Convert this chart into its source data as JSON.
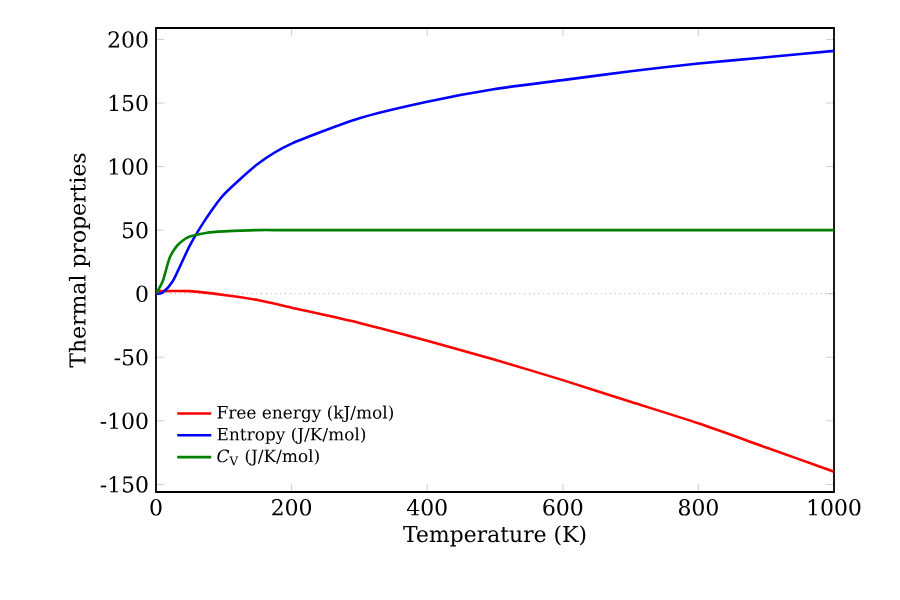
{
  "chart_data": {
    "type": "line",
    "xlabel": "Temperature (K)",
    "ylabel": "Thermal properties",
    "xlim": [
      0,
      1000
    ],
    "ylim": [
      -156,
      209
    ],
    "xticks": [
      0,
      200,
      400,
      600,
      800,
      1000
    ],
    "yticks": [
      -150,
      -100,
      -50,
      0,
      50,
      100,
      150,
      200
    ],
    "legend": "bottom left",
    "grid": false,
    "marker": "none",
    "line_style": "solid",
    "ref_lines": [
      {
        "axis": "y",
        "value": 0,
        "color": "#808080",
        "line_style": "dotted"
      }
    ],
    "series": [
      {
        "name": "Free energy (kJ/mol)",
        "color": "#ff0000",
        "x": [
          0,
          50,
          100,
          150,
          200,
          300,
          400,
          500,
          600,
          700,
          800,
          900,
          1000
        ],
        "values": [
          2,
          2,
          -1,
          -5,
          -11,
          -23,
          -37,
          -52,
          -68,
          -85,
          -102,
          -121,
          -140
        ]
      },
      {
        "name": "Entropy (J/K/mol)",
        "color": "#0000ff",
        "x": [
          0,
          10,
          25,
          50,
          75,
          100,
          150,
          200,
          300,
          400,
          500,
          600,
          700,
          800,
          900,
          1000
        ],
        "values": [
          0,
          1,
          10,
          38,
          60,
          78,
          102,
          118,
          138,
          151,
          161,
          168,
          175,
          181,
          186,
          191
        ]
      },
      {
        "name": "*C*$_{V}$ (J/K/mol)",
        "color": "#008000",
        "x": [
          0,
          10,
          20,
          30,
          40,
          50,
          75,
          100,
          150,
          200,
          400,
          1000
        ],
        "values": [
          0,
          10,
          28,
          37,
          42,
          45,
          48,
          49,
          50,
          50,
          50,
          50
        ]
      }
    ]
  }
}
